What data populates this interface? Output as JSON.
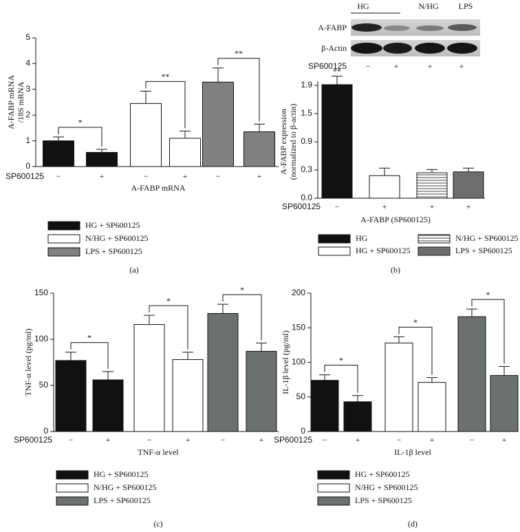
{
  "chart_data": [
    {
      "type": "bar",
      "label": "(a)",
      "ylabel": [
        "A-FABP mRNA",
        "/18S mRNA"
      ],
      "xlabel": "A-FABP mRNA",
      "treatment_label": "SP600125",
      "ylim": [
        0,
        5
      ],
      "yticks": [
        0,
        1,
        2,
        3,
        4,
        5
      ],
      "legend_columns": 1,
      "series": [
        {
          "name": "HG + SP600125",
          "color": "#111111",
          "categories": [
            "−",
            "+"
          ],
          "values": [
            1.0,
            0.55
          ],
          "errors": [
            0.15,
            0.12
          ],
          "significance": "*"
        },
        {
          "name": "N/HG + SP600125",
          "color": "#ffffff",
          "categories": [
            "−",
            "+"
          ],
          "values": [
            2.45,
            1.1
          ],
          "errors": [
            0.48,
            0.28
          ],
          "significance": "**"
        },
        {
          "name": "LPS + SP600125",
          "color": "#808080",
          "categories": [
            "−",
            "+"
          ],
          "values": [
            3.28,
            1.35
          ],
          "errors": [
            0.55,
            0.3
          ],
          "significance": "**"
        }
      ]
    },
    {
      "type": "bar",
      "label": "(b)",
      "ylabel": [
        "A-FABP expression",
        "(normalized to β-actin)"
      ],
      "xlabel": "A-FABP (SP600125)",
      "treatment_label": "SP600125",
      "ylim": [
        0.0,
        1.9
      ],
      "yticks": [
        0.0,
        0.3,
        0.9,
        1.5,
        1.9
      ],
      "legend_columns": 2,
      "blot": {
        "lanes": [
          "HG",
          "N/HG",
          "LPS"
        ],
        "rows": [
          "A-FABP",
          "β-Actin"
        ],
        "treatment_label": "SP600125",
        "treatment": [
          "−",
          "+",
          "+",
          "+"
        ]
      },
      "series": [
        {
          "name": "HG",
          "color": "#111111",
          "categories": [
            "−"
          ],
          "values": [
            1.91
          ],
          "errors": [
            0.12
          ],
          "significance": "**"
        },
        {
          "name": "HG + SP600125",
          "color": "#ffffff",
          "categories": [
            "+"
          ],
          "values": [
            0.24
          ],
          "errors": [
            0.1
          ]
        },
        {
          "name": "N/HG + SP600125",
          "color": "#ffffff",
          "pattern": "hatched",
          "categories": [
            "+"
          ],
          "values": [
            0.27
          ],
          "errors": [
            0.04
          ]
        },
        {
          "name": "LPS + SP600125",
          "color": "#6e6e6e",
          "categories": [
            "+"
          ],
          "values": [
            0.28
          ],
          "errors": [
            0.06
          ]
        }
      ]
    },
    {
      "type": "bar",
      "label": "(c)",
      "ylabel": [
        "TNF-α level (pg/ml)"
      ],
      "xlabel": "TNF-α level",
      "treatment_label": "SP600125",
      "ylim": [
        0,
        150
      ],
      "yticks": [
        0,
        50,
        100,
        150
      ],
      "legend_columns": 1,
      "series": [
        {
          "name": "HG + SP600125",
          "color": "#111111",
          "categories": [
            "−",
            "+"
          ],
          "values": [
            77,
            56
          ],
          "errors": [
            9,
            9
          ],
          "significance": "*"
        },
        {
          "name": "N/HG + SP600125",
          "color": "#ffffff",
          "categories": [
            "−",
            "+"
          ],
          "values": [
            116,
            78
          ],
          "errors": [
            10,
            8
          ],
          "significance": "*"
        },
        {
          "name": "LPS + SP600125",
          "color": "#6b7171",
          "categories": [
            "−",
            "+"
          ],
          "values": [
            128,
            87
          ],
          "errors": [
            10,
            9
          ],
          "significance": "*"
        }
      ]
    },
    {
      "type": "bar",
      "label": "(d)",
      "ylabel": [
        "IL-1β level (pg/ml)"
      ],
      "xlabel": "IL-1β level",
      "treatment_label": "SP600125",
      "ylim": [
        0,
        200
      ],
      "yticks": [
        0,
        50,
        100,
        150,
        200
      ],
      "legend_columns": 1,
      "series": [
        {
          "name": "HG + SP600125",
          "color": "#111111",
          "categories": [
            "−",
            "+"
          ],
          "values": [
            74,
            43
          ],
          "errors": [
            8,
            9
          ],
          "significance": "*"
        },
        {
          "name": "N/HG + SP600125",
          "color": "#ffffff",
          "categories": [
            "−",
            "+"
          ],
          "values": [
            128,
            71
          ],
          "errors": [
            9,
            7
          ],
          "significance": "*"
        },
        {
          "name": "LPS + SP600125",
          "color": "#6b7171",
          "categories": [
            "−",
            "+"
          ],
          "values": [
            166,
            81
          ],
          "errors": [
            11,
            13
          ],
          "significance": "*"
        }
      ]
    }
  ]
}
